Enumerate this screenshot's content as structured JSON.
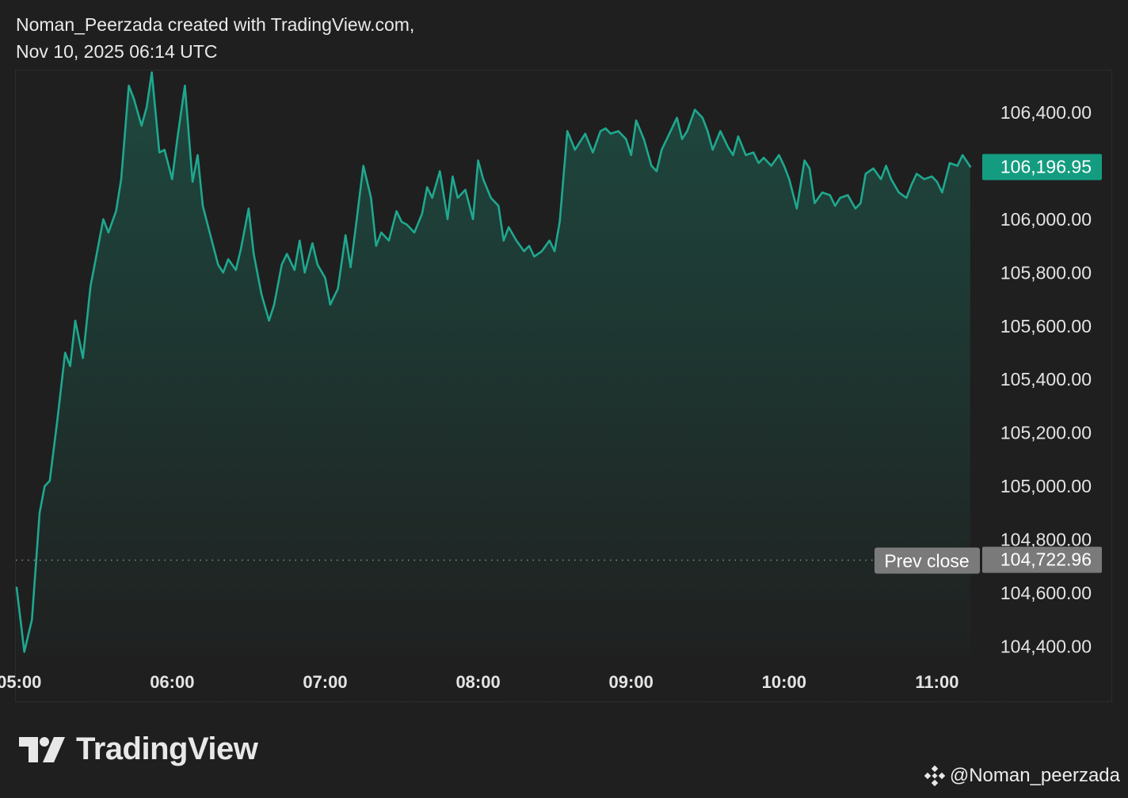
{
  "header": {
    "line1": "Noman_Peerzada created with TradingView.com,",
    "line2": "Nov 10, 2025 06:14 UTC"
  },
  "brand": {
    "name": "TradingView",
    "logo_icon": "tradingview-logo-icon"
  },
  "watermark": {
    "icon": "binance-diamond-icon",
    "handle": "@Noman_peerzada"
  },
  "colors": {
    "background": "#1f1f1f",
    "line": "#1fa88e",
    "price_badge": "#149c80",
    "prev_close_badge": "#7a7a7a",
    "text": "#e4e4e4"
  },
  "chart_data": {
    "type": "area",
    "y_axis_position": "right",
    "ylim": [
      104360,
      106560
    ],
    "yticks": [
      "106,400.00",
      "106,000.00",
      "105,800.00",
      "105,600.00",
      "105,400.00",
      "105,200.00",
      "105,000.00",
      "104,800.00",
      "104,600.00",
      "104,400.00"
    ],
    "ytick_values": [
      106400,
      106000,
      105800,
      105600,
      105400,
      105200,
      105000,
      104800,
      104600,
      104400
    ],
    "xlim": [
      "04:59",
      "11:14"
    ],
    "xticks": [
      "05:00",
      "06:00",
      "07:00",
      "08:00",
      "09:00",
      "10:00",
      "11:00"
    ],
    "last_price": {
      "label": "106,196.95",
      "value": 106196.95
    },
    "prev_close": {
      "label": "Prev close",
      "value_label": "104,722.96",
      "value": 104722.96
    },
    "series": [
      {
        "x": [
          "04:59",
          "05:02",
          "05:05",
          "05:08",
          "05:10",
          "05:12",
          "05:15",
          "05:18",
          "05:20",
          "05:22",
          "05:25",
          "05:28",
          "05:30",
          "05:33",
          "05:35",
          "05:38",
          "05:40",
          "05:43",
          "05:45",
          "05:48",
          "05:50",
          "05:52",
          "05:55",
          "05:57",
          "06:00",
          "06:02",
          "06:05",
          "06:08",
          "06:10",
          "06:12",
          "06:15",
          "06:18",
          "06:20",
          "06:22",
          "06:25",
          "06:27",
          "06:30",
          "06:32",
          "06:35",
          "06:38",
          "06:40",
          "06:43",
          "06:45",
          "06:48",
          "06:50",
          "06:52",
          "06:55",
          "06:57",
          "07:00",
          "07:02",
          "07:05",
          "07:08",
          "07:10",
          "07:12",
          "07:15",
          "07:18",
          "07:20",
          "07:22",
          "07:25",
          "07:28",
          "07:30",
          "07:32",
          "07:35",
          "07:38",
          "07:40",
          "07:42",
          "07:45",
          "07:48",
          "07:50",
          "07:52",
          "07:55",
          "07:58",
          "08:00",
          "08:02",
          "08:05",
          "08:08",
          "08:10",
          "08:12",
          "08:15",
          "08:18",
          "08:20",
          "08:22",
          "08:25",
          "08:28",
          "08:30",
          "08:32",
          "08:35",
          "08:38",
          "08:40",
          "08:42",
          "08:45",
          "08:48",
          "08:50",
          "08:52",
          "08:55",
          "08:58",
          "09:00",
          "09:02",
          "09:05",
          "09:08",
          "09:10",
          "09:12",
          "09:15",
          "09:18",
          "09:20",
          "09:22",
          "09:25",
          "09:28",
          "09:30",
          "09:32",
          "09:35",
          "09:38",
          "09:40",
          "09:42",
          "09:45",
          "09:48",
          "09:50",
          "09:52",
          "09:55",
          "09:58",
          "10:00",
          "10:02",
          "10:05",
          "10:08",
          "10:10",
          "10:12",
          "10:15",
          "10:18",
          "10:20",
          "10:22",
          "10:25",
          "10:28",
          "10:30",
          "10:32",
          "10:35",
          "10:38",
          "10:40",
          "10:42",
          "10:45",
          "10:48",
          "10:50",
          "10:52",
          "10:55",
          "10:58",
          "11:00",
          "11:02",
          "11:05",
          "11:08",
          "11:10",
          "11:13"
        ],
        "values": [
          104620,
          104380,
          104500,
          104900,
          105000,
          105020,
          105250,
          105500,
          105450,
          105620,
          105480,
          105750,
          105850,
          106000,
          105950,
          106030,
          106150,
          106500,
          106450,
          106350,
          106420,
          106550,
          106250,
          106260,
          106150,
          106300,
          106500,
          106140,
          106240,
          106050,
          105940,
          105830,
          105800,
          105850,
          105810,
          105890,
          106040,
          105870,
          105720,
          105620,
          105680,
          105830,
          105870,
          105810,
          105920,
          105800,
          105910,
          105830,
          105780,
          105680,
          105740,
          105940,
          105820,
          105970,
          106200,
          106080,
          105900,
          105950,
          105920,
          106030,
          105990,
          105980,
          105950,
          106020,
          106120,
          106080,
          106180,
          106000,
          106160,
          106080,
          106110,
          106000,
          106220,
          106150,
          106080,
          106050,
          105920,
          105970,
          105920,
          105880,
          105900,
          105860,
          105880,
          105920,
          105880,
          105990,
          106330,
          106260,
          106290,
          106320,
          106250,
          106330,
          106340,
          106320,
          106330,
          106300,
          106240,
          106370,
          106300,
          106200,
          106180,
          106260,
          106320,
          106380,
          106300,
          106330,
          106410,
          106380,
          106330,
          106260,
          106330,
          106270,
          106240,
          106310,
          106240,
          106250,
          106210,
          106230,
          106200,
          106240,
          106200,
          106150,
          106040,
          106220,
          106190,
          106060,
          106100,
          106090,
          106050,
          106080,
          106090,
          106040,
          106060,
          106170,
          106190,
          106150,
          106200,
          106150,
          106100,
          106080,
          106130,
          106170,
          106150,
          106160,
          106140,
          106100,
          106210,
          106200,
          106240,
          106197
        ]
      }
    ]
  }
}
